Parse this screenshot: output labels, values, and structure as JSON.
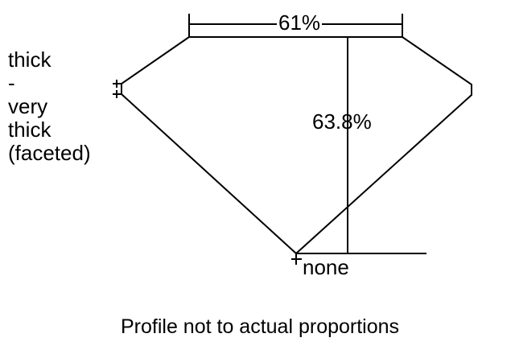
{
  "diagram": {
    "girdle_label_lines": [
      "thick",
      "-",
      "very",
      "thick",
      "(faceted)"
    ],
    "table_percent": "61%",
    "depth_percent": "63.8%",
    "culet_label": "none",
    "note": "Profile not to actual proportions",
    "line_color": "#000000"
  }
}
